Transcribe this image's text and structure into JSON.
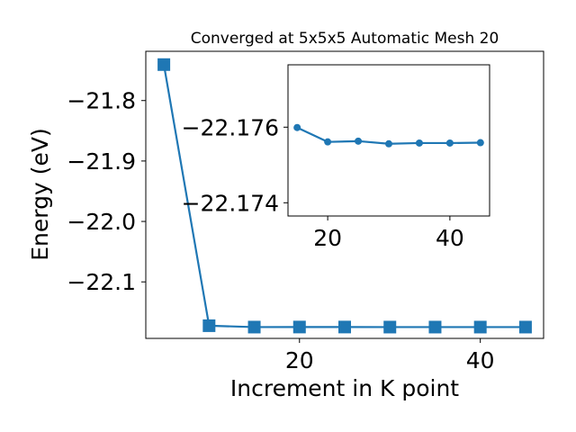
{
  "chart_data": {
    "type": "line",
    "title": "Converged at 5x5x5 Automatic Mesh 20",
    "xlabel": "Increment in K point",
    "ylabel": "Energy (eV)",
    "color": "#1f77b4",
    "grid": false,
    "main": {
      "x": [
        5,
        10,
        15,
        20,
        25,
        30,
        35,
        40,
        45
      ],
      "y": [
        -21.7405,
        -22.1725,
        -22.1748,
        -22.1747,
        -22.1747,
        -22.1748,
        -22.1748,
        -22.1748,
        -22.1748
      ],
      "xlim": [
        3.0,
        47.0
      ],
      "ylim": [
        -22.1935,
        -21.7185
      ],
      "xticks": [
        20,
        40
      ],
      "xtick_labels": [
        "20",
        "40"
      ],
      "yticks": [
        -21.8,
        -21.9,
        -22.0,
        -22.1
      ],
      "ytick_labels": [
        "−21.8",
        "−21.9",
        "−22.0",
        "−22.1"
      ],
      "marker": "square"
    },
    "inset": {
      "x": [
        15,
        20,
        25,
        30,
        35,
        40,
        45
      ],
      "y": [
        -22.17599,
        -22.17561,
        -22.17563,
        -22.17556,
        -22.17558,
        -22.17558,
        -22.17559
      ],
      "xlim": [
        13.5,
        46.5
      ],
      "ylim": [
        -22.17365,
        -22.17765
      ],
      "xticks": [
        20,
        40
      ],
      "xtick_labels": [
        "20",
        "40"
      ],
      "yticks": [
        -22.176,
        -22.174
      ],
      "ytick_labels": [
        "−22.176",
        "−22.174"
      ],
      "marker": "circle"
    }
  }
}
